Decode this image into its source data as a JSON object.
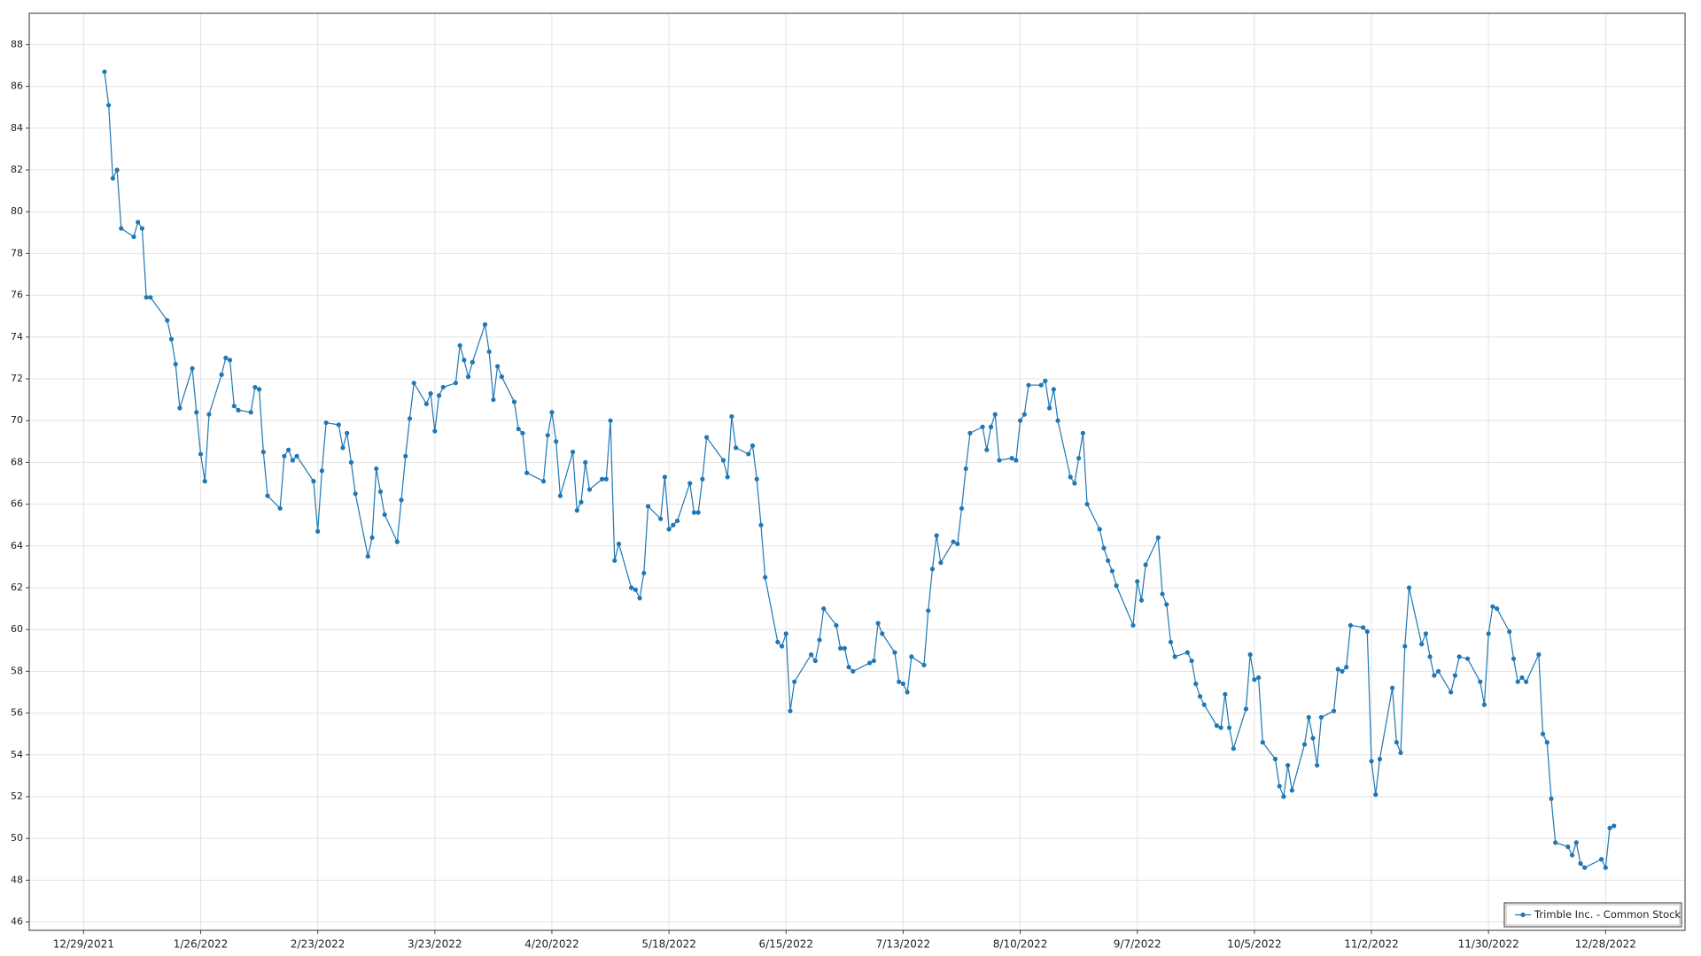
{
  "chart_data": {
    "type": "line",
    "x": [
      "1/3/2022",
      "1/4/2022",
      "1/5/2022",
      "1/6/2022",
      "1/7/2022",
      "1/10/2022",
      "1/11/2022",
      "1/12/2022",
      "1/13/2022",
      "1/14/2022",
      "1/18/2022",
      "1/19/2022",
      "1/20/2022",
      "1/21/2022",
      "1/24/2022",
      "1/25/2022",
      "1/26/2022",
      "1/27/2022",
      "1/28/2022",
      "1/31/2022",
      "2/1/2022",
      "2/2/2022",
      "2/3/2022",
      "2/4/2022",
      "2/7/2022",
      "2/8/2022",
      "2/9/2022",
      "2/10/2022",
      "2/11/2022",
      "2/14/2022",
      "2/15/2022",
      "2/16/2022",
      "2/17/2022",
      "2/18/2022",
      "2/22/2022",
      "2/23/2022",
      "2/24/2022",
      "2/25/2022",
      "2/28/2022",
      "3/1/2022",
      "3/2/2022",
      "3/3/2022",
      "3/4/2022",
      "3/7/2022",
      "3/8/2022",
      "3/9/2022",
      "3/10/2022",
      "3/11/2022",
      "3/14/2022",
      "3/15/2022",
      "3/16/2022",
      "3/17/2022",
      "3/18/2022",
      "3/21/2022",
      "3/22/2022",
      "3/23/2022",
      "3/24/2022",
      "3/25/2022",
      "3/28/2022",
      "3/29/2022",
      "3/30/2022",
      "3/31/2022",
      "4/1/2022",
      "4/4/2022",
      "4/5/2022",
      "4/6/2022",
      "4/7/2022",
      "4/8/2022",
      "4/11/2022",
      "4/12/2022",
      "4/13/2022",
      "4/14/2022",
      "4/18/2022",
      "4/19/2022",
      "4/20/2022",
      "4/21/2022",
      "4/22/2022",
      "4/25/2022",
      "4/26/2022",
      "4/27/2022",
      "4/28/2022",
      "4/29/2022",
      "5/2/2022",
      "5/3/2022",
      "5/4/2022",
      "5/5/2022",
      "5/6/2022",
      "5/9/2022",
      "5/10/2022",
      "5/11/2022",
      "5/12/2022",
      "5/13/2022",
      "5/16/2022",
      "5/17/2022",
      "5/18/2022",
      "5/19/2022",
      "5/20/2022",
      "5/23/2022",
      "5/24/2022",
      "5/25/2022",
      "5/26/2022",
      "5/27/2022",
      "5/31/2022",
      "6/1/2022",
      "6/2/2022",
      "6/3/2022",
      "6/6/2022",
      "6/7/2022",
      "6/8/2022",
      "6/9/2022",
      "6/10/2022",
      "6/13/2022",
      "6/14/2022",
      "6/15/2022",
      "6/16/2022",
      "6/17/2022",
      "6/21/2022",
      "6/22/2022",
      "6/23/2022",
      "6/24/2022",
      "6/27/2022",
      "6/28/2022",
      "6/29/2022",
      "6/30/2022",
      "7/1/2022",
      "7/5/2022",
      "7/6/2022",
      "7/7/2022",
      "7/8/2022",
      "7/11/2022",
      "7/12/2022",
      "7/13/2022",
      "7/14/2022",
      "7/15/2022",
      "7/18/2022",
      "7/19/2022",
      "7/20/2022",
      "7/21/2022",
      "7/22/2022",
      "7/25/2022",
      "7/26/2022",
      "7/27/2022",
      "7/28/2022",
      "7/29/2022",
      "8/1/2022",
      "8/2/2022",
      "8/3/2022",
      "8/4/2022",
      "8/5/2022",
      "8/8/2022",
      "8/9/2022",
      "8/10/2022",
      "8/11/2022",
      "8/12/2022",
      "8/15/2022",
      "8/16/2022",
      "8/17/2022",
      "8/18/2022",
      "8/19/2022",
      "8/22/2022",
      "8/23/2022",
      "8/24/2022",
      "8/25/2022",
      "8/26/2022",
      "8/29/2022",
      "8/30/2022",
      "8/31/2022",
      "9/1/2022",
      "9/2/2022",
      "9/6/2022",
      "9/7/2022",
      "9/8/2022",
      "9/9/2022",
      "9/12/2022",
      "9/13/2022",
      "9/14/2022",
      "9/15/2022",
      "9/16/2022",
      "9/19/2022",
      "9/20/2022",
      "9/21/2022",
      "9/22/2022",
      "9/23/2022",
      "9/26/2022",
      "9/27/2022",
      "9/28/2022",
      "9/29/2022",
      "9/30/2022",
      "10/3/2022",
      "10/4/2022",
      "10/5/2022",
      "10/6/2022",
      "10/7/2022",
      "10/10/2022",
      "10/11/2022",
      "10/12/2022",
      "10/13/2022",
      "10/14/2022",
      "10/17/2022",
      "10/18/2022",
      "10/19/2022",
      "10/20/2022",
      "10/21/2022",
      "10/24/2022",
      "10/25/2022",
      "10/26/2022",
      "10/27/2022",
      "10/28/2022",
      "10/31/2022",
      "11/1/2022",
      "11/2/2022",
      "11/3/2022",
      "11/4/2022",
      "11/7/2022",
      "11/8/2022",
      "11/9/2022",
      "11/10/2022",
      "11/11/2022",
      "11/14/2022",
      "11/15/2022",
      "11/16/2022",
      "11/17/2022",
      "11/18/2022",
      "11/21/2022",
      "11/22/2022",
      "11/23/2022",
      "11/25/2022",
      "11/28/2022",
      "11/29/2022",
      "11/30/2022",
      "12/1/2022",
      "12/2/2022",
      "12/5/2022",
      "12/6/2022",
      "12/7/2022",
      "12/8/2022",
      "12/9/2022",
      "12/12/2022",
      "12/13/2022",
      "12/14/2022",
      "12/15/2022",
      "12/16/2022",
      "12/19/2022",
      "12/20/2022",
      "12/21/2022",
      "12/22/2022",
      "12/23/2022",
      "12/27/2022",
      "12/28/2022",
      "12/29/2022",
      "12/30/2022"
    ],
    "series": [
      {
        "name": "Trimble Inc. - Common Stock",
        "color": "#1f77b4",
        "values": [
          86.7,
          85.1,
          81.6,
          82.0,
          79.2,
          78.8,
          79.5,
          79.2,
          75.9,
          75.9,
          74.8,
          73.9,
          72.7,
          70.6,
          72.5,
          70.4,
          68.4,
          67.1,
          70.3,
          72.2,
          73.0,
          72.9,
          70.7,
          70.5,
          70.4,
          71.6,
          71.5,
          68.5,
          66.4,
          65.8,
          68.3,
          68.6,
          68.1,
          68.3,
          67.1,
          64.7,
          67.6,
          69.9,
          69.8,
          68.7,
          69.4,
          68.0,
          66.5,
          63.5,
          64.4,
          67.7,
          66.6,
          65.5,
          64.2,
          66.2,
          68.3,
          70.1,
          71.8,
          70.8,
          71.3,
          69.5,
          71.2,
          71.6,
          71.8,
          73.6,
          72.9,
          72.1,
          72.8,
          74.6,
          73.3,
          71.0,
          72.6,
          72.1,
          70.9,
          69.6,
          69.4,
          67.5,
          67.1,
          69.3,
          70.4,
          69.0,
          66.4,
          68.5,
          65.7,
          66.1,
          68.0,
          66.7,
          67.2,
          67.2,
          70.0,
          63.3,
          64.1,
          62.0,
          61.9,
          61.5,
          62.7,
          65.9,
          65.3,
          67.3,
          64.8,
          65.0,
          65.2,
          67.0,
          65.6,
          65.6,
          67.2,
          69.2,
          68.1,
          67.3,
          70.2,
          68.7,
          68.4,
          68.8,
          67.2,
          65.0,
          62.5,
          59.4,
          59.2,
          59.8,
          56.1,
          57.5,
          58.8,
          58.5,
          59.5,
          61.0,
          60.2,
          59.1,
          59.1,
          58.2,
          58.0,
          58.4,
          58.5,
          60.3,
          59.8,
          58.9,
          57.5,
          57.4,
          57.0,
          58.7,
          58.3,
          60.9,
          62.9,
          64.5,
          63.2,
          64.2,
          64.1,
          65.8,
          67.7,
          69.4,
          69.7,
          68.6,
          69.7,
          70.3,
          68.1,
          68.2,
          68.1,
          70.0,
          70.3,
          71.7,
          71.7,
          71.9,
          70.6,
          71.5,
          70.0,
          67.3,
          67.0,
          68.2,
          69.4,
          66.0,
          64.8,
          63.9,
          63.3,
          62.8,
          62.1,
          60.2,
          62.3,
          61.4,
          63.1,
          64.4,
          61.7,
          61.2,
          59.4,
          58.7,
          58.9,
          58.5,
          57.4,
          56.8,
          56.4,
          55.4,
          55.3,
          56.9,
          55.3,
          54.3,
          56.2,
          58.8,
          57.6,
          57.7,
          54.6,
          53.8,
          52.5,
          52.0,
          53.5,
          52.3,
          54.5,
          55.8,
          54.8,
          53.5,
          55.8,
          56.1,
          58.1,
          58.0,
          58.2,
          60.2,
          60.1,
          59.9,
          53.7,
          52.1,
          53.8,
          57.2,
          54.6,
          54.1,
          59.2,
          62.0,
          59.3,
          59.8,
          58.7,
          57.8,
          58.0,
          57.0,
          57.8,
          58.7,
          58.6,
          57.5,
          56.4,
          59.8,
          61.1,
          61.0,
          59.9,
          58.6,
          57.5,
          57.7,
          57.5,
          58.8,
          55.0,
          54.6,
          51.9,
          49.8,
          49.6,
          49.2,
          49.8,
          48.8,
          48.6,
          49.0,
          48.6,
          50.5,
          50.6
        ]
      }
    ],
    "xlim": [
      "12/16/2021",
      "1/16/2023"
    ],
    "xticks": [
      "12/29/2021",
      "1/26/2022",
      "2/23/2022",
      "3/23/2022",
      "4/20/2022",
      "5/18/2022",
      "6/15/2022",
      "7/13/2022",
      "8/10/2022",
      "9/7/2022",
      "10/5/2022",
      "11/2/2022",
      "11/30/2022",
      "12/28/2022"
    ],
    "ylim": [
      45.6,
      89.5
    ],
    "yticks": [
      46,
      48,
      50,
      52,
      54,
      56,
      58,
      60,
      62,
      64,
      66,
      68,
      70,
      72,
      74,
      76,
      78,
      80,
      82,
      84,
      86,
      88
    ],
    "grid": true,
    "legend": "bottom-right"
  }
}
